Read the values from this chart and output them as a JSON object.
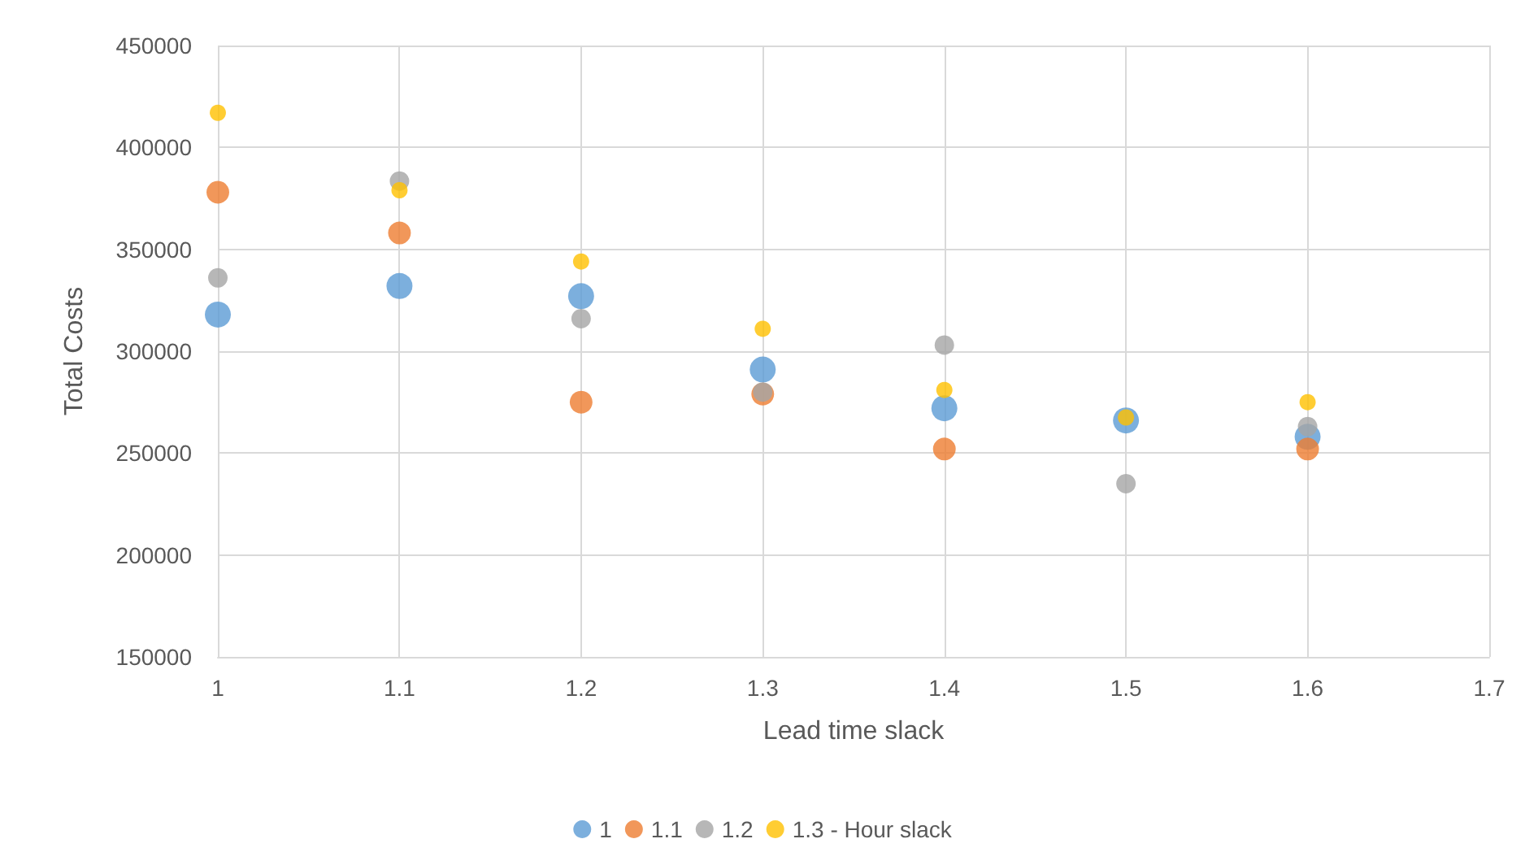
{
  "chart_data": {
    "type": "scatter",
    "xlabel": "Lead time slack",
    "ylabel": "Total Costs",
    "x": [
      1,
      1.1,
      1.2,
      1.3,
      1.4,
      1.5,
      1.6
    ],
    "series": [
      {
        "name": "1",
        "color": "#5b9bd5",
        "values": [
          318000,
          332000,
          327000,
          291000,
          272000,
          266000,
          258000
        ]
      },
      {
        "name": "1.1",
        "color": "#ed7d31",
        "values": [
          378000,
          358000,
          275000,
          279000,
          252000,
          null,
          252000
        ]
      },
      {
        "name": "1.2",
        "color": "#a5a5a5",
        "values": [
          336000,
          383500,
          316000,
          280000,
          303000,
          235000,
          263000
        ]
      },
      {
        "name": "1.3 - Hour slack",
        "color": "#ffc000",
        "values": [
          417000,
          379000,
          344000,
          311000,
          281000,
          267500,
          275000
        ]
      }
    ],
    "xlim": [
      1,
      1.7
    ],
    "xticks": [
      1,
      1.1,
      1.2,
      1.3,
      1.4,
      1.5,
      1.6,
      1.7
    ],
    "ylim": [
      150000,
      450000
    ],
    "yticks": [
      150000,
      200000,
      250000,
      300000,
      350000,
      400000,
      450000
    ],
    "grid": true,
    "legend": "bottom",
    "marker": "circle"
  }
}
